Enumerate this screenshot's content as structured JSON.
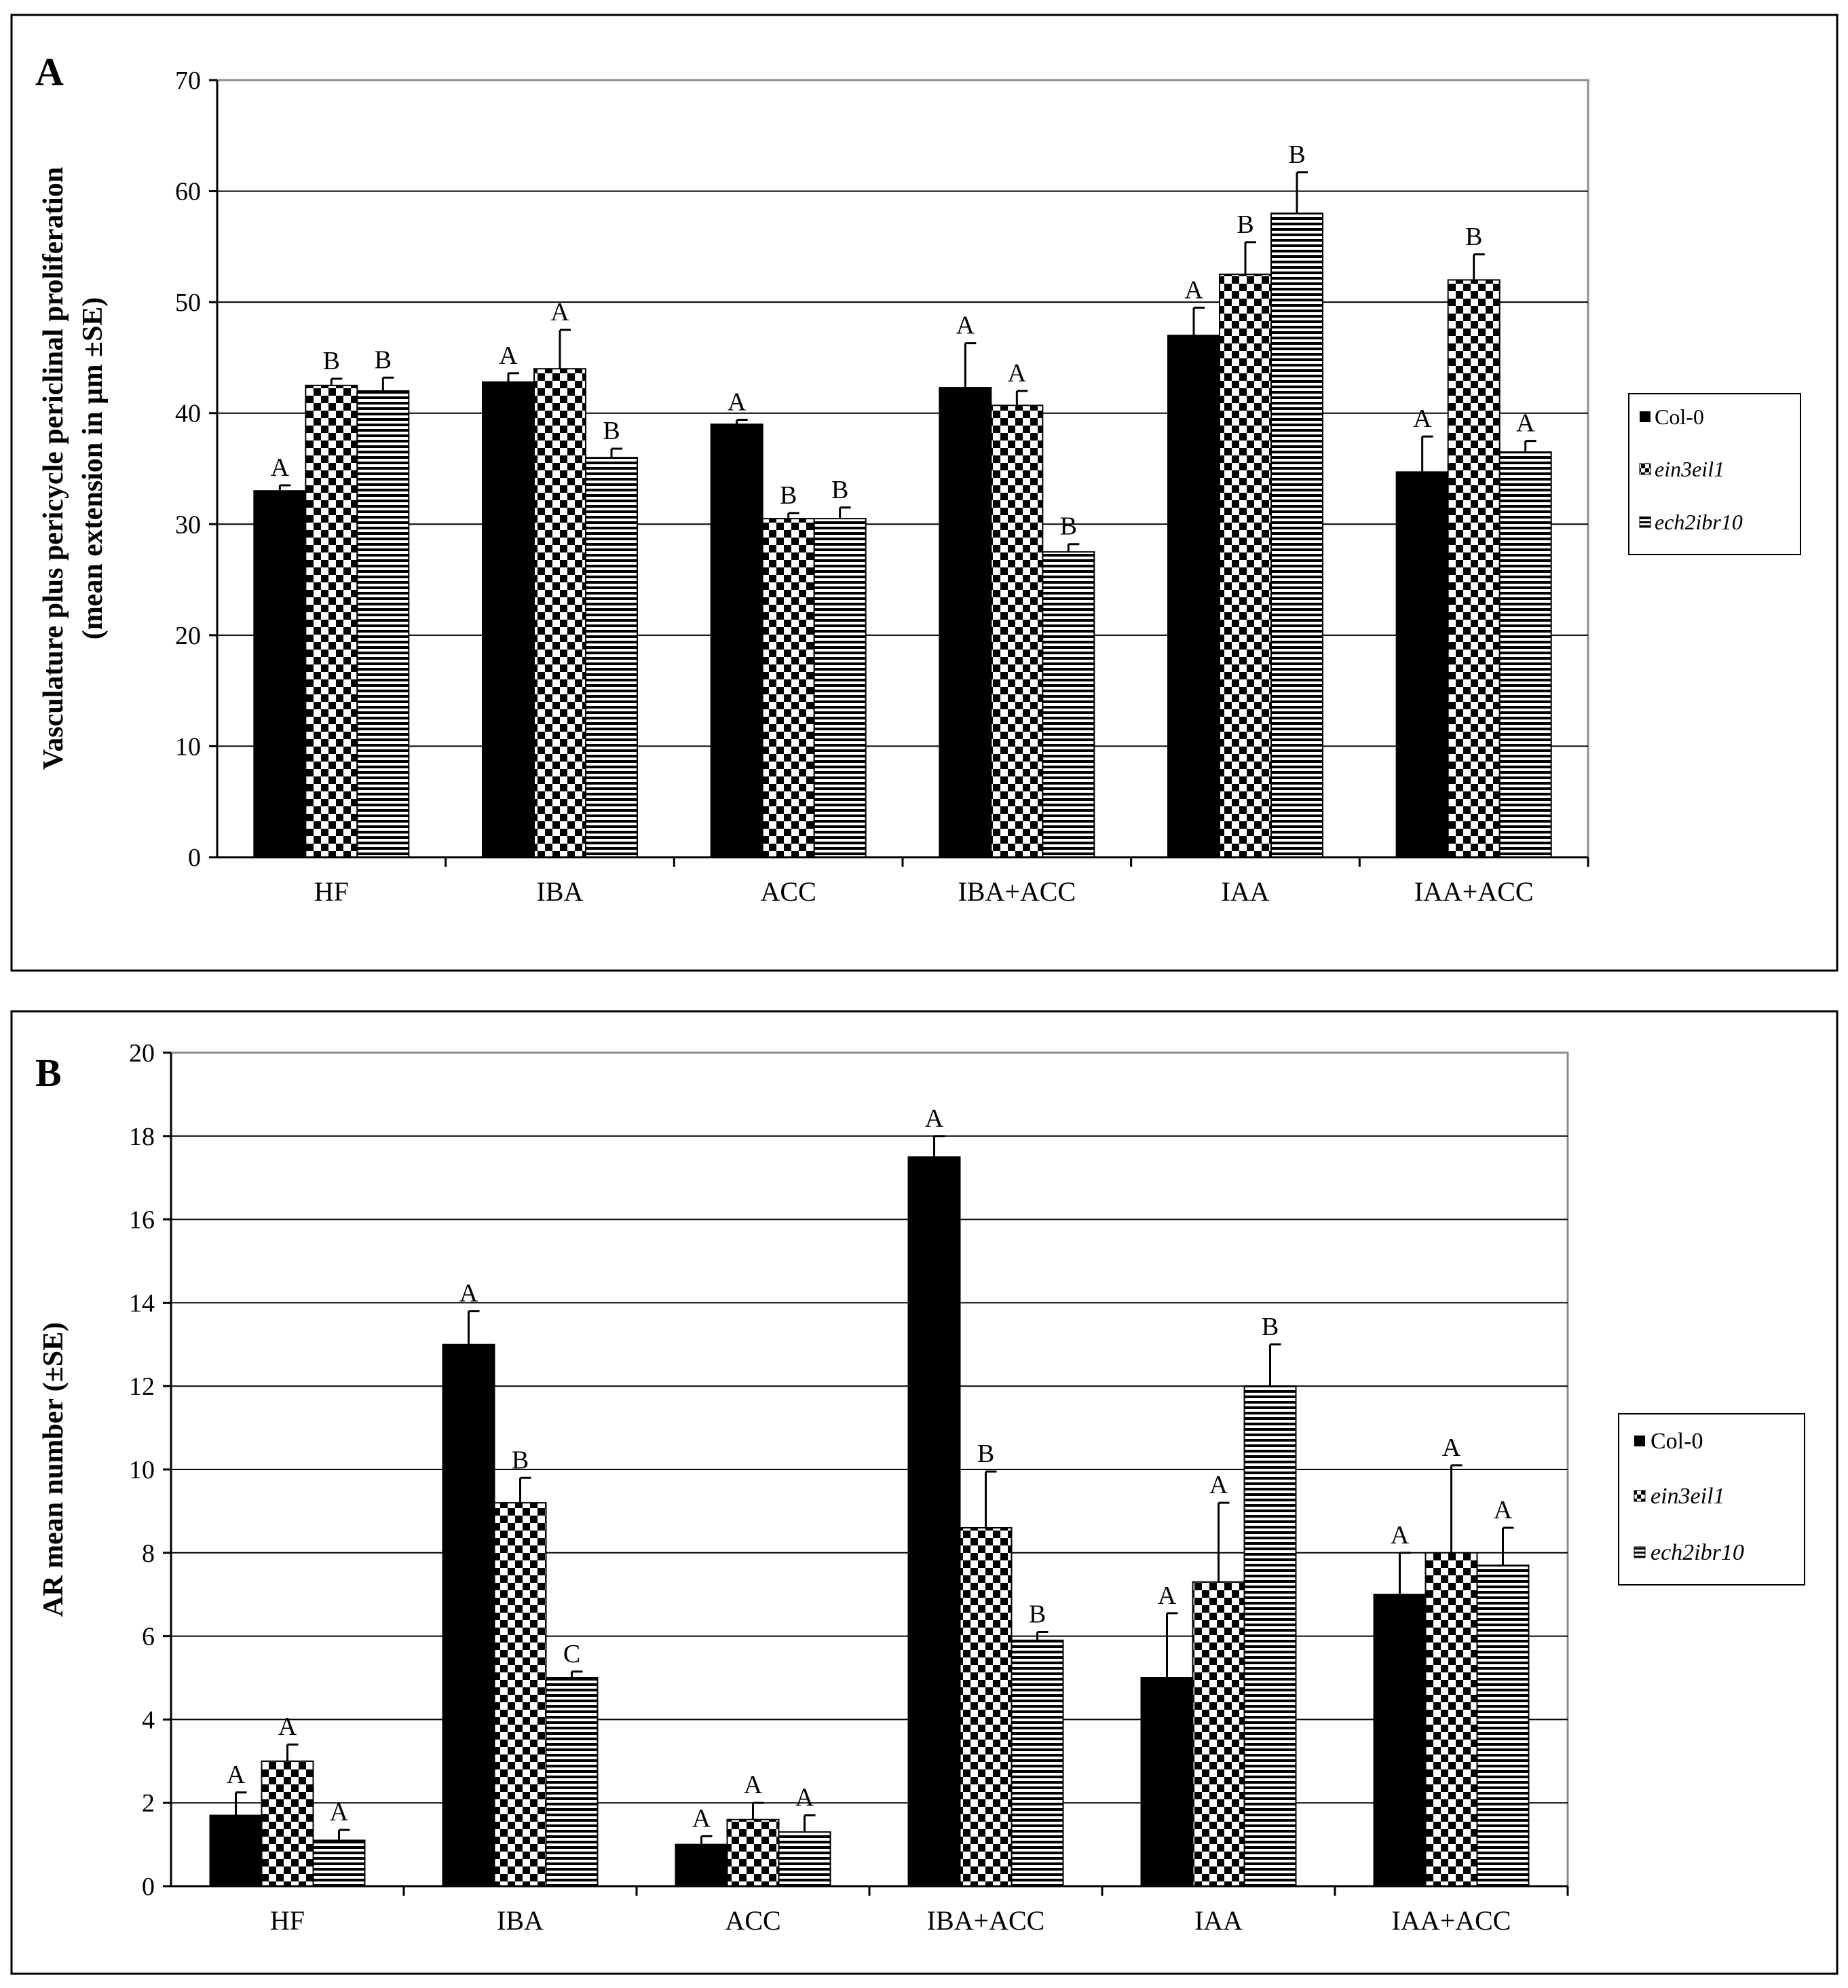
{
  "chart_data": [
    {
      "panel": "A",
      "type": "bar",
      "title": "",
      "ylabel_line1": "Vasculature plus pericycle periclinal proliferation",
      "ylabel_line2": "(mean extension in µm ±SE)",
      "xlabel": "",
      "ylim": [
        0,
        70
      ],
      "yticks": [
        0,
        10,
        20,
        30,
        40,
        50,
        60,
        70
      ],
      "grid": true,
      "legend_position": "right",
      "categories": [
        "HF",
        "IBA",
        "ACC",
        "IBA+ACC",
        "IAA",
        "IAA+ACC"
      ],
      "series": [
        {
          "name": "Col-0",
          "pattern": "solid",
          "values": [
            33.0,
            42.8,
            39.0,
            42.3,
            47.0,
            34.7
          ],
          "errors": [
            0.5,
            0.8,
            0.4,
            4.0,
            2.5,
            3.2
          ],
          "labels": [
            "A",
            "A",
            "A",
            "A",
            "A",
            "A"
          ]
        },
        {
          "name": "ein3eil1",
          "pattern": "checker",
          "values": [
            42.5,
            44.0,
            30.5,
            40.7,
            52.5,
            52.0
          ],
          "errors": [
            0.6,
            3.5,
            0.5,
            1.3,
            2.9,
            2.3
          ],
          "labels": [
            "B",
            "A",
            "B",
            "A",
            "B",
            "B"
          ]
        },
        {
          "name": "ech2ibr10",
          "pattern": "stripes",
          "values": [
            42.0,
            36.0,
            30.5,
            27.5,
            58.0,
            36.5
          ],
          "errors": [
            1.2,
            0.8,
            1.0,
            0.7,
            3.7,
            1.0
          ],
          "labels": [
            "B",
            "B",
            "B",
            "B",
            "B",
            "A"
          ]
        }
      ]
    },
    {
      "panel": "B",
      "type": "bar",
      "title": "",
      "ylabel_line1": "AR mean number (±SE)",
      "ylabel_line2": "",
      "xlabel": "",
      "ylim": [
        0,
        20
      ],
      "yticks": [
        0,
        2,
        4,
        6,
        8,
        10,
        12,
        14,
        16,
        18,
        20
      ],
      "grid": true,
      "legend_position": "right",
      "categories": [
        "HF",
        "IBA",
        "ACC",
        "IBA+ACC",
        "IAA",
        "IAA+ACC"
      ],
      "series": [
        {
          "name": "Col-0",
          "pattern": "solid",
          "values": [
            1.7,
            13.0,
            1.0,
            17.5,
            5.0,
            7.0
          ],
          "errors": [
            0.55,
            0.8,
            0.2,
            0.5,
            1.55,
            1.0
          ],
          "labels": [
            "A",
            "A",
            "A",
            "A",
            "A",
            "A"
          ]
        },
        {
          "name": "ein3eil1",
          "pattern": "checker",
          "values": [
            3.0,
            9.2,
            1.6,
            8.6,
            7.3,
            8.0
          ],
          "errors": [
            0.4,
            0.6,
            0.4,
            1.35,
            1.9,
            2.1
          ],
          "labels": [
            "A",
            "B",
            "A",
            "B",
            "A",
            "A"
          ]
        },
        {
          "name": "ech2ibr10",
          "pattern": "stripes",
          "values": [
            1.1,
            5.0,
            1.3,
            5.9,
            12.0,
            7.7
          ],
          "errors": [
            0.25,
            0.15,
            0.4,
            0.2,
            1.0,
            0.9
          ],
          "labels": [
            "A",
            "C",
            "A",
            "B",
            "B",
            "A"
          ]
        }
      ]
    }
  ]
}
